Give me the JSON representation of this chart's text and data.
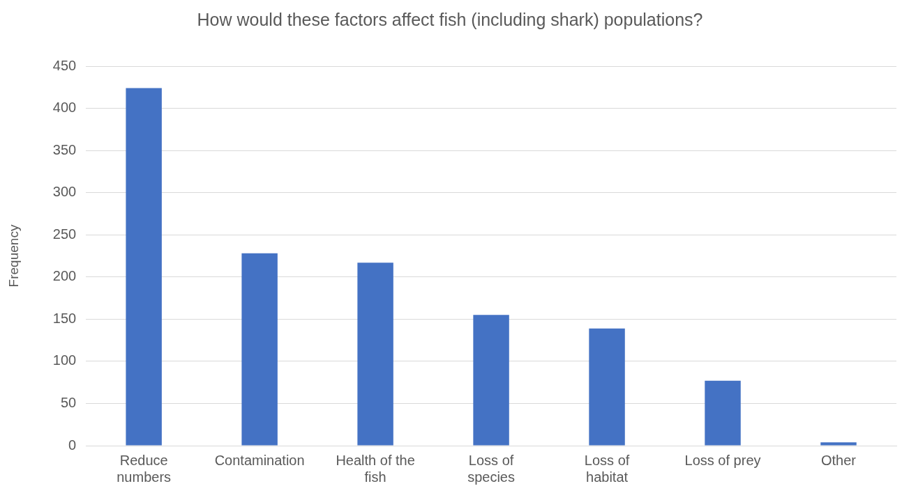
{
  "chart_data": {
    "type": "bar",
    "title": "How would these factors affect fish (including shark) populations?",
    "ylabel": "Frequency",
    "categories": [
      "Reduce numbers",
      "Contamination",
      "Health of the fish",
      "Loss of species",
      "Loss of habitat",
      "Loss of prey",
      "Other"
    ],
    "values": [
      424,
      228,
      217,
      155,
      139,
      77,
      4
    ],
    "color": "#4472c4",
    "ylim": [
      0,
      450
    ],
    "yticks": [
      0,
      50,
      100,
      150,
      200,
      250,
      300,
      350,
      400,
      450
    ],
    "grid": "y",
    "legend": false
  }
}
